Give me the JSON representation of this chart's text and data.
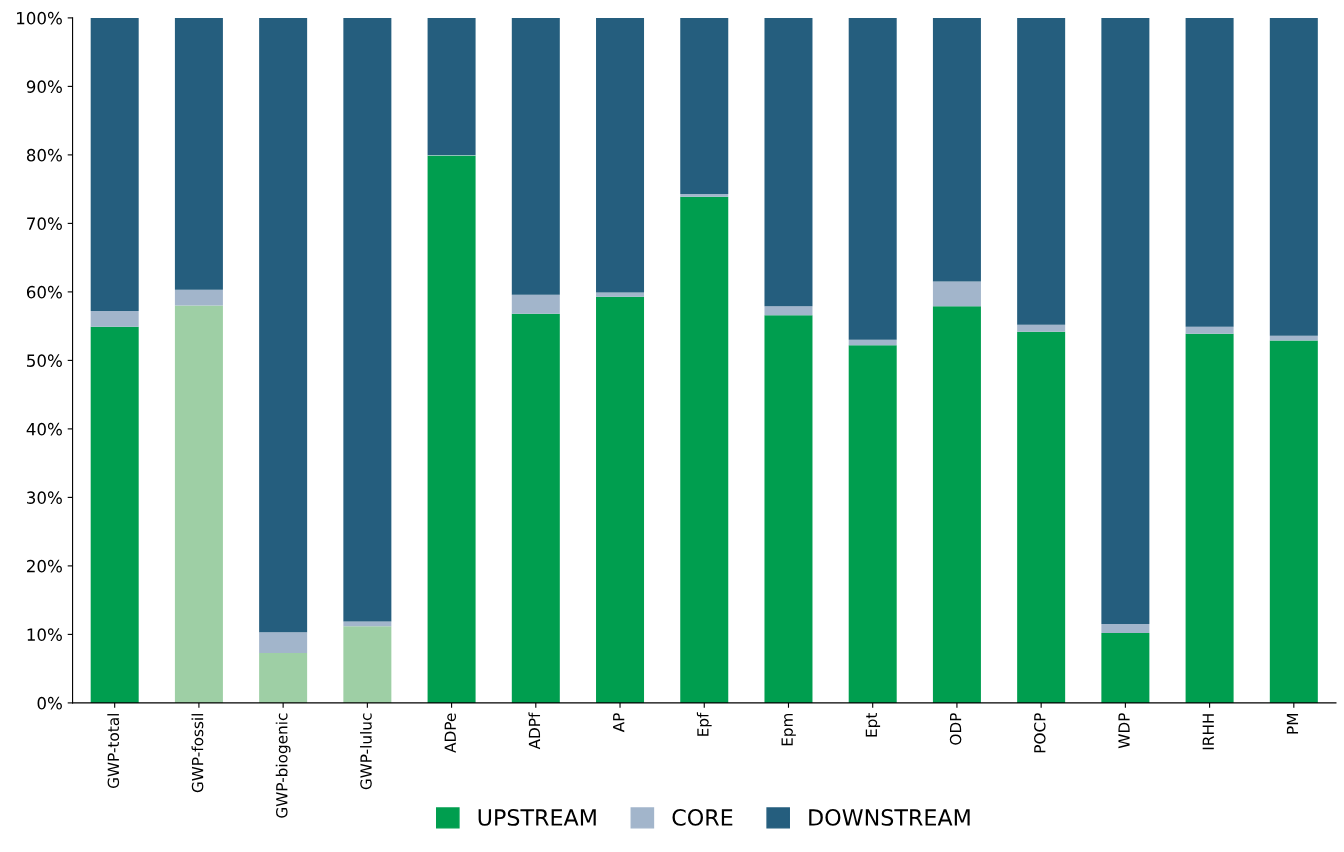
{
  "chart_data": {
    "type": "bar",
    "stacked": true,
    "categories": [
      "GWP-total",
      "GWP-fossil",
      "GWP-biogenic",
      "GWP-luluc",
      "ADPe",
      "ADPf",
      "AP",
      "Epf",
      "Epm",
      "Ept",
      "ODP",
      "POCP",
      "WDP",
      "IRHH",
      "PM"
    ],
    "series": [
      {
        "name": "UPSTREAM",
        "color": "#009e4f",
        "colors": [
          "#009e4f",
          "#9ecfa5",
          "#9ecfa5",
          "#9ecfa5",
          "#009e4f",
          "#009e4f",
          "#009e4f",
          "#009e4f",
          "#009e4f",
          "#009e4f",
          "#009e4f",
          "#009e4f",
          "#009e4f",
          "#009e4f",
          "#009e4f"
        ],
        "values": [
          54.9,
          58.0,
          7.3,
          11.2,
          79.9,
          56.8,
          59.3,
          73.9,
          56.6,
          52.2,
          57.9,
          54.2,
          10.2,
          53.9,
          52.9
        ]
      },
      {
        "name": "CORE",
        "color": "#a2b5cb",
        "values": [
          2.3,
          2.3,
          3.0,
          0.7,
          0.1,
          2.8,
          0.6,
          0.4,
          1.3,
          0.8,
          3.6,
          1.0,
          1.3,
          1.0,
          0.7
        ]
      },
      {
        "name": "DOWNSTREAM",
        "color": "#255e7e",
        "values": [
          42.8,
          39.7,
          89.7,
          88.1,
          20.0,
          40.4,
          40.1,
          25.7,
          42.1,
          47.0,
          38.5,
          44.8,
          88.5,
          45.1,
          46.4
        ]
      }
    ],
    "ylim": [
      0,
      100
    ],
    "yticks": [
      {
        "value": 0,
        "label": "0%"
      },
      {
        "value": 10,
        "label": "10%"
      },
      {
        "value": 20,
        "label": "20%"
      },
      {
        "value": 30,
        "label": "30%"
      },
      {
        "value": 40,
        "label": "40%"
      },
      {
        "value": 50,
        "label": "50%"
      },
      {
        "value": 60,
        "label": "60%"
      },
      {
        "value": 70,
        "label": "70%"
      },
      {
        "value": 80,
        "label": "80%"
      },
      {
        "value": 90,
        "label": "90%"
      },
      {
        "value": 100,
        "label": "100%"
      }
    ],
    "grid": false,
    "legend": "bottom"
  }
}
